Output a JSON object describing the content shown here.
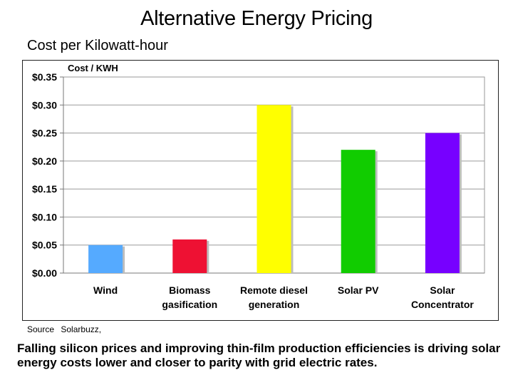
{
  "title": "Alternative Energy Pricing",
  "subtitle": "Cost per Kilowatt-hour",
  "source": {
    "label": "Source",
    "value": "Solarbuzz,"
  },
  "caption": "Falling silicon prices and improving thin-film production efficiencies is driving solar energy costs lower and closer to parity with grid electric rates.",
  "chart_data": {
    "type": "bar",
    "title": "",
    "ylabel": "Cost / KWH",
    "xlabel": "",
    "categories": [
      [
        "Wind"
      ],
      [
        "Biomass",
        "gasification"
      ],
      [
        "Remote diesel",
        "generation"
      ],
      [
        "Solar PV"
      ],
      [
        "Solar",
        "Concentrator"
      ]
    ],
    "category_names": [
      "Wind",
      "Biomass gasification",
      "Remote diesel generation",
      "Solar PV",
      "Solar Concentrator"
    ],
    "values": [
      0.05,
      0.06,
      0.3,
      0.22,
      0.25
    ],
    "colors": [
      "#55aaff",
      "#ee1133",
      "#ffff00",
      "#11cc00",
      "#7700ff"
    ],
    "ylim": [
      0,
      0.35
    ],
    "yticks": [
      0,
      0.05,
      0.1,
      0.15,
      0.2,
      0.25,
      0.3,
      0.35
    ],
    "ytick_labels": [
      "$0.00",
      "$0.05",
      "$0.10",
      "$0.15",
      "$0.20",
      "$0.25",
      "$0.30",
      "$0.35"
    ],
    "grid": true,
    "legend": "none"
  }
}
